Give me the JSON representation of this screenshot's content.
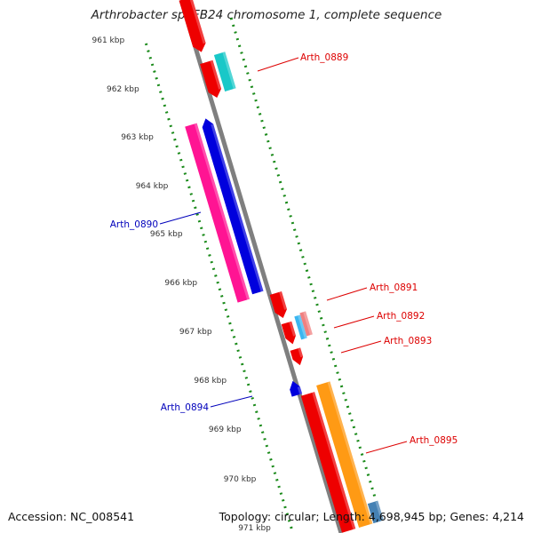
{
  "title": "Arthrobacter sp. FB24 chromosome 1, complete sequence",
  "footer": {
    "accession": "Accession: NC_008541",
    "summary": "Topology: circular; Length: 4,698,945 bp; Genes: 4,214"
  },
  "colors": {
    "backbone": "#7f7f7f",
    "tick": "#1a8a1a",
    "forward_label": "#dd0000",
    "reverse_label": "#0000bb"
  },
  "scale": {
    "unit": "kbp",
    "ticks": [
      "961 kbp",
      "962 kbp",
      "963 kbp",
      "964 kbp",
      "965 kbp",
      "966 kbp",
      "967 kbp",
      "968 kbp",
      "969 kbp",
      "970 kbp",
      "971 kbp"
    ]
  },
  "features": [
    {
      "name": "gene-red-top",
      "strand": "forward",
      "color": "#ee0000"
    },
    {
      "name": "gene-red-961",
      "strand": "forward",
      "color": "#ee0000"
    },
    {
      "name": "gene-cyan-961",
      "strand": "forward",
      "color": "#19c8c8"
    },
    {
      "name": "gene-pink-963",
      "strand": "reverse",
      "color": "#ff1493"
    },
    {
      "name": "gene-blue-963",
      "strand": "reverse",
      "color": "#0000dd"
    },
    {
      "name": "gene-red-966a",
      "strand": "forward",
      "color": "#ee0000"
    },
    {
      "name": "gene-red-966b",
      "strand": "forward",
      "color": "#ee0000"
    },
    {
      "name": "gene-skyblue-967",
      "strand": "forward",
      "color": "#3bb6f0"
    },
    {
      "name": "gene-salmon-967",
      "strand": "forward",
      "color": "#f08080"
    },
    {
      "name": "gene-red-967",
      "strand": "forward",
      "color": "#ee0000"
    },
    {
      "name": "gene-blue-968",
      "strand": "reverse",
      "color": "#0000dd"
    },
    {
      "name": "gene-red-968",
      "strand": "forward",
      "color": "#ee0000"
    },
    {
      "name": "gene-orange-968",
      "strand": "forward",
      "color": "#ff9a14"
    },
    {
      "name": "gene-steelblue-971",
      "strand": "forward",
      "color": "#4682b4"
    }
  ],
  "labels": [
    {
      "text": "Arth_0889",
      "strand": "forward"
    },
    {
      "text": "Arth_0890",
      "strand": "reverse"
    },
    {
      "text": "Arth_0891",
      "strand": "forward"
    },
    {
      "text": "Arth_0892",
      "strand": "forward"
    },
    {
      "text": "Arth_0893",
      "strand": "forward"
    },
    {
      "text": "Arth_0894",
      "strand": "reverse"
    },
    {
      "text": "Arth_0895",
      "strand": "forward"
    }
  ]
}
